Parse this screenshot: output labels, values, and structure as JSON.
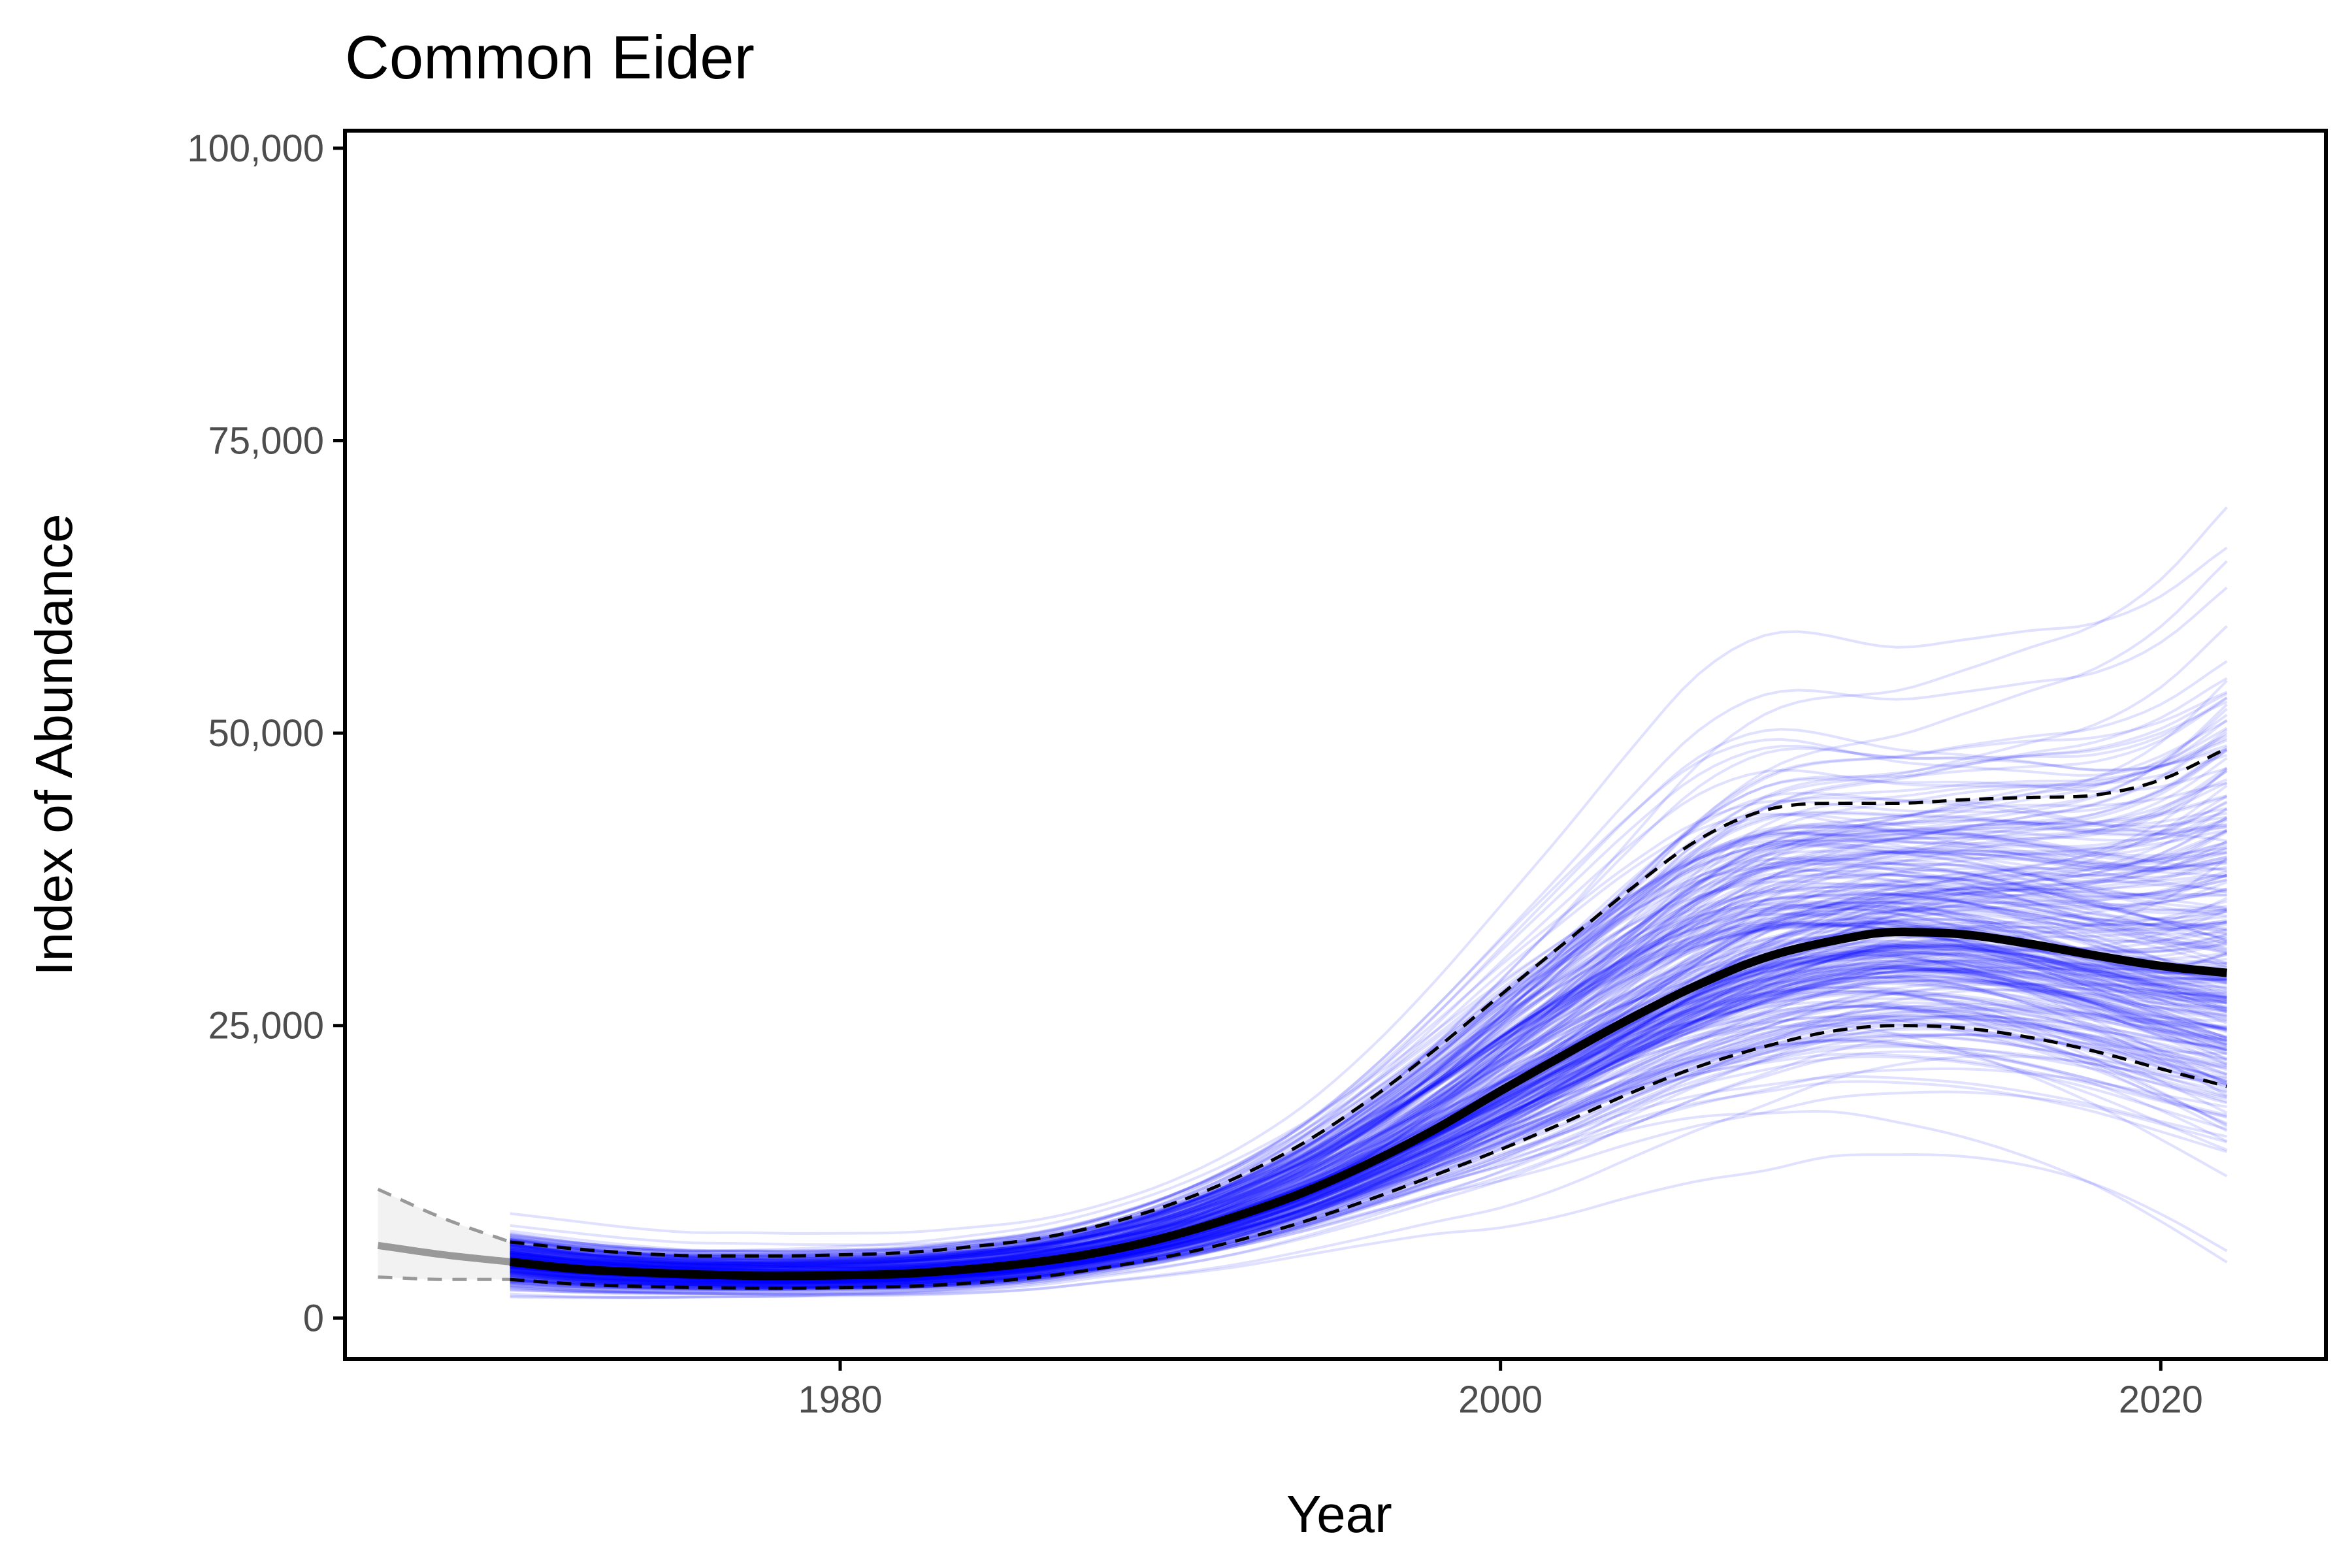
{
  "chart_data": {
    "type": "line",
    "title": "Common Eider",
    "xlabel": "Year",
    "ylabel": "Index of Abundance",
    "xlim": [
      1965,
      2025
    ],
    "ylim": [
      -3500,
      101500
    ],
    "x_ticks": [
      1980,
      2000,
      2020
    ],
    "x_tick_labels": [
      "1980",
      "2000",
      "2020"
    ],
    "y_ticks": [
      0,
      25000,
      50000,
      75000,
      100000
    ],
    "y_tick_labels": [
      "0",
      "25,000",
      "50,000",
      "75,000",
      "100,000"
    ],
    "grid": false,
    "legend": "none",
    "colors": {
      "trajectories": "#0000ff",
      "median": "#000000",
      "interval": "#000000",
      "pre_period": "#999999",
      "pre_period_band": "#f2f2f2"
    },
    "x": [
      1970,
      1972,
      1974,
      1976,
      1978,
      1980,
      1982,
      1984,
      1986,
      1988,
      1990,
      1992,
      1994,
      1996,
      1998,
      2000,
      2002,
      2004,
      2006,
      2008,
      2010,
      2012,
      2014,
      2016,
      2018,
      2020,
      2022
    ],
    "series": [
      {
        "values": [
          4800,
          4200,
          3900,
          3700,
          3600,
          3650,
          3800,
          4200,
          4800,
          5700,
          7000,
          8700,
          10700,
          13200,
          16100,
          19400,
          22600,
          25700,
          28500,
          30800,
          32200,
          33000,
          32800,
          32000,
          31000,
          30100,
          29500
        ]
      },
      {
        "values": [
          6500,
          5900,
          5500,
          5300,
          5300,
          5400,
          5600,
          6100,
          6800,
          8000,
          9700,
          12000,
          14900,
          18600,
          22900,
          27600,
          32200,
          36800,
          40900,
          43400,
          44000,
          44000,
          44300,
          44500,
          44700,
          46000,
          48700
        ]
      },
      {
        "values": [
          3300,
          2900,
          2700,
          2600,
          2550,
          2600,
          2700,
          3000,
          3500,
          4300,
          5300,
          6600,
          8200,
          10100,
          12200,
          14400,
          16800,
          19300,
          21500,
          23200,
          24500,
          25000,
          24800,
          24000,
          22800,
          21300,
          19800
        ]
      }
    ],
    "pre_period": {
      "x": [
        1966,
        1968,
        1970
      ],
      "median": [
        6200,
        5400,
        4800
      ],
      "upper": [
        11000,
        8500,
        6500
      ],
      "lower": [
        3500,
        3300,
        3300
      ]
    }
  }
}
